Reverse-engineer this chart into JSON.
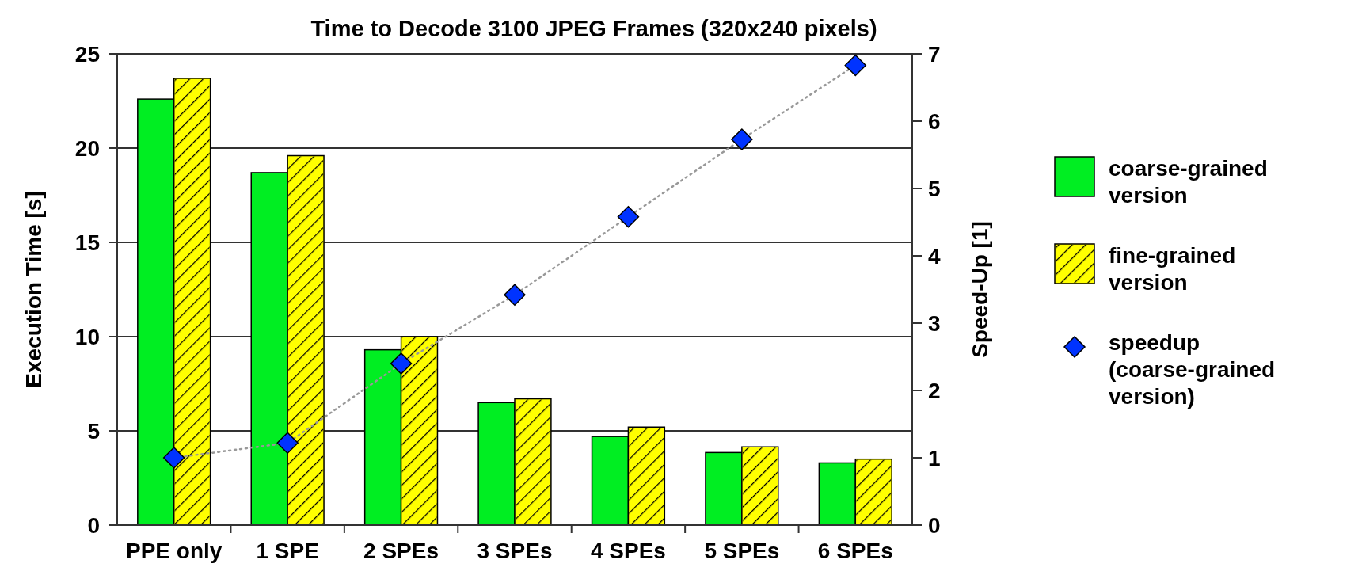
{
  "chart_data": {
    "type": "bar",
    "title": "Time to Decode 3100 JPEG Frames (320x240 pixels)",
    "ylabel": "Execution Time [s]",
    "y2label": "Speed-Up [1]",
    "categories": [
      "PPE only",
      "1 SPE",
      "2 SPEs",
      "3 SPEs",
      "4 SPEs",
      "5 SPEs",
      "6 SPEs"
    ],
    "series": [
      {
        "name": "coarse-grained version",
        "color": "#00ee22",
        "values": [
          22.6,
          18.7,
          9.3,
          6.5,
          4.7,
          3.85,
          3.3
        ]
      },
      {
        "name": "fine-grained version",
        "color": "#ffff00",
        "values": [
          23.7,
          19.6,
          10.0,
          6.7,
          5.2,
          4.15,
          3.5
        ]
      },
      {
        "name": "speedup (coarse-grained version)",
        "type": "line",
        "axis": "y2",
        "color": "#0033ff",
        "marker": "diamond",
        "line_style": "dotted",
        "values": [
          1.0,
          1.22,
          2.4,
          3.42,
          4.58,
          5.73,
          6.83
        ]
      }
    ],
    "ylim": [
      0,
      25
    ],
    "yticks": [
      0,
      5,
      10,
      15,
      20,
      25
    ],
    "y2lim": [
      0,
      7
    ],
    "y2ticks": [
      0,
      1,
      2,
      3,
      4,
      5,
      6,
      7
    ],
    "grid": "y",
    "legend": "right"
  }
}
